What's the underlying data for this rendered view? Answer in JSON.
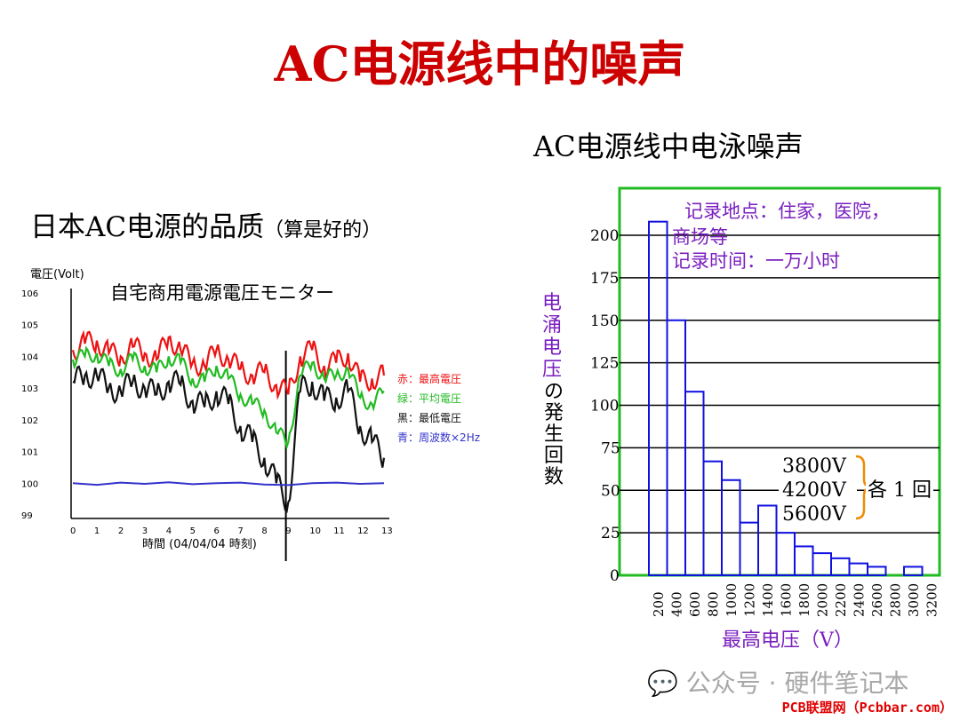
{
  "title": "AC电源线中的噪声",
  "right_heading": "AC电源线中电泳噪声",
  "left_heading": "日本AC电源的品质",
  "left_heading_sub": "（算是好的）",
  "watermark": "公众号 · 硬件笔记本",
  "site": "PCB联盟网（Pcbbar.com）",
  "chart_data": [
    {
      "type": "line",
      "title": "自宅商用電源電圧モニター",
      "ylabel": "電圧(Volt)",
      "xlabel": "時間 (04/04/04 時刻)",
      "yticks": [
        99,
        100,
        101,
        102,
        103,
        104,
        105,
        106
      ],
      "xticks": [
        0,
        1,
        2,
        3,
        4,
        5,
        6,
        7,
        8,
        9,
        10,
        11,
        12,
        13
      ],
      "ylim": [
        99,
        106
      ],
      "xlim": [
        0,
        13
      ],
      "legend": [
        "赤：最高電圧",
        "緑：平均電圧",
        "黒：最低電圧",
        "青：周波数×2Hz"
      ],
      "legend_position": "right",
      "series": [
        {
          "color": "#ee1111",
          "x": [
            0,
            0.5,
            1,
            1.5,
            2,
            2.5,
            3,
            3.5,
            4,
            4.5,
            5,
            5.5,
            6,
            6.5,
            7,
            7.5,
            8,
            8.5,
            9,
            9.5,
            10,
            10.5,
            11,
            11.5,
            12,
            12.5,
            13
          ],
          "values": [
            104.2,
            104.4,
            104.5,
            104.1,
            104.0,
            104.3,
            104.1,
            103.9,
            104.6,
            104.2,
            103.8,
            103.7,
            104.2,
            103.9,
            103.6,
            103.4,
            103.5,
            103.1,
            102.8,
            104.0,
            104.2,
            103.7,
            103.8,
            104.1,
            103.2,
            103.3,
            103.4
          ]
        },
        {
          "color": "#22bb22",
          "x": [
            0,
            0.5,
            1,
            1.5,
            2,
            2.5,
            3,
            3.5,
            4,
            4.5,
            5,
            5.5,
            6,
            6.5,
            7,
            7.5,
            8,
            8.5,
            9,
            9.5,
            10,
            10.5,
            11,
            11.5,
            12,
            12.5,
            13
          ],
          "values": [
            103.9,
            104.0,
            104.1,
            103.7,
            103.6,
            103.9,
            103.7,
            103.5,
            104.0,
            103.8,
            103.3,
            103.2,
            103.7,
            103.3,
            102.8,
            102.5,
            102.3,
            101.6,
            101.3,
            103.4,
            103.8,
            103.3,
            103.4,
            103.6,
            102.7,
            102.5,
            102.9
          ]
        },
        {
          "color": "#111111",
          "x": [
            0,
            0.5,
            1,
            1.5,
            2,
            2.5,
            3,
            3.5,
            4,
            4.5,
            5,
            5.5,
            6,
            6.5,
            7,
            7.5,
            8,
            8.5,
            9,
            9.5,
            10,
            10.5,
            11,
            11.5,
            12,
            12.5,
            13
          ],
          "values": [
            103.2,
            103.4,
            103.4,
            103.0,
            102.9,
            103.2,
            103.0,
            102.8,
            103.2,
            103.1,
            102.6,
            102.4,
            102.9,
            102.5,
            101.8,
            101.3,
            100.8,
            100.0,
            99.4,
            102.9,
            103.2,
            102.6,
            102.7,
            102.9,
            101.8,
            101.3,
            100.8
          ]
        },
        {
          "color": "#3333cc",
          "x": [
            0,
            1,
            2,
            3,
            4,
            5,
            6,
            7,
            8,
            9,
            10,
            11,
            12,
            13
          ],
          "values": [
            100.0,
            99.95,
            100.02,
            99.98,
            100.03,
            99.97,
            100.0,
            100.02,
            99.96,
            99.94,
            100.0,
            100.02,
            99.98,
            100.0
          ]
        }
      ]
    },
    {
      "type": "bar",
      "ylabel_lines": [
        "电",
        "涌",
        "电",
        "压"
      ],
      "ylabel_suffix": [
        "の",
        "発",
        "生",
        "回",
        "数"
      ],
      "xlabel": "最高电压（V）",
      "categories": [
        "200",
        "400",
        "600",
        "800",
        "1000",
        "1200",
        "1400",
        "1600",
        "1800",
        "2000",
        "2200",
        "2400",
        "2600",
        "2800",
        "3000",
        "3200"
      ],
      "values": [
        208,
        150,
        108,
        67,
        56,
        31,
        41,
        25,
        17,
        13,
        10,
        7,
        5,
        0,
        5,
        0
      ],
      "yticks": [
        0,
        25,
        50,
        75,
        100,
        125,
        150,
        175,
        200
      ],
      "ylim": [
        0,
        215
      ],
      "annotations": {
        "location": "记录地点：住家，医院，",
        "location2": "商场等",
        "duration": "记录时间：一万小时",
        "extremes": [
          "3800V",
          "4200V",
          "5600V"
        ],
        "extremes_label": "各 1 回"
      }
    }
  ]
}
